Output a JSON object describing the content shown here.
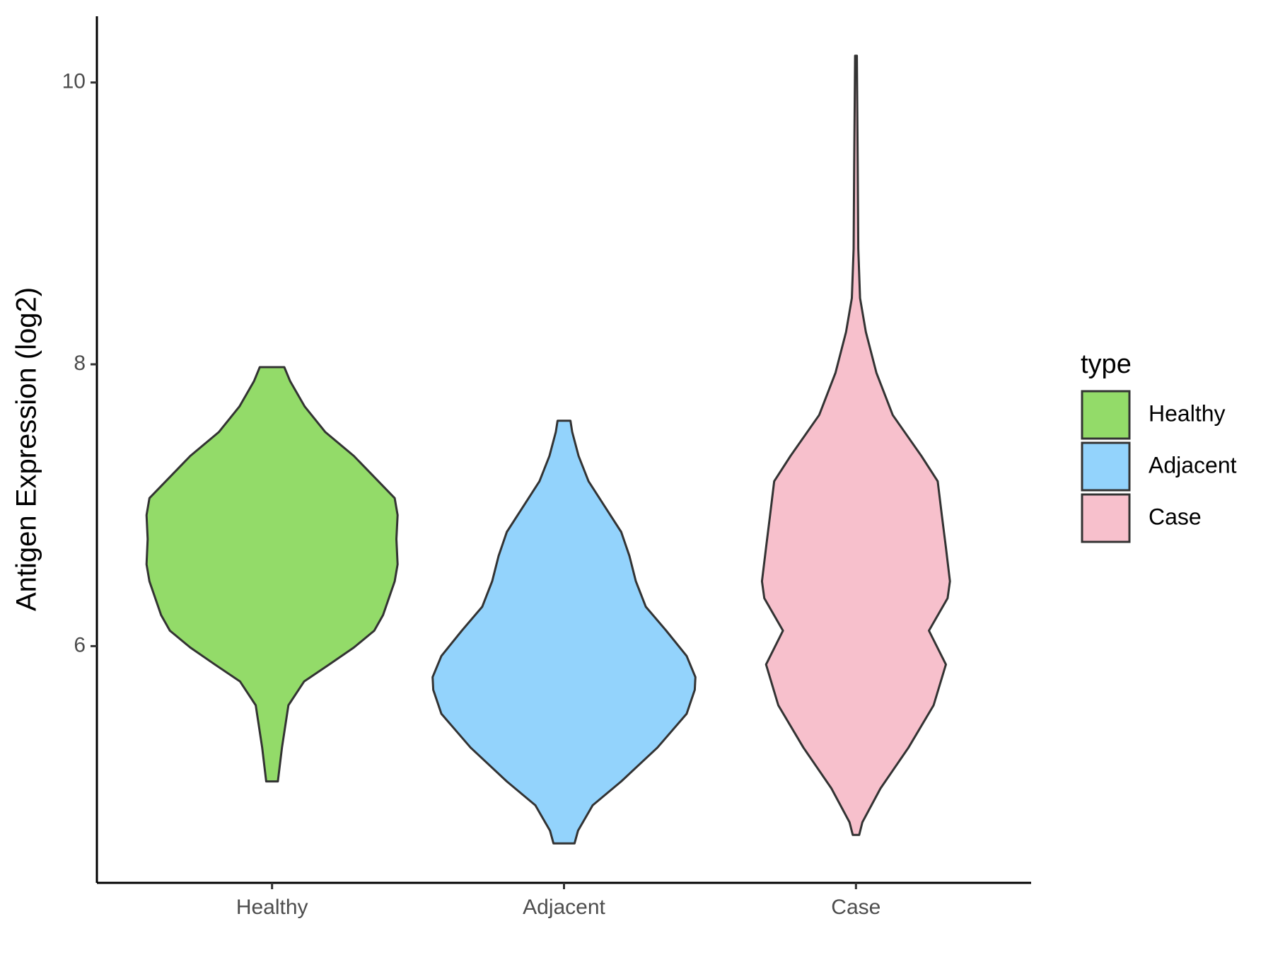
{
  "chart_data": {
    "type": "violin",
    "y_label": "Antigen Expression (log2)",
    "legend_title": "type",
    "ylim": [
      4.32,
      10.47
    ],
    "yticks": [
      6,
      8,
      10
    ],
    "categories": [
      "Healthy",
      "Adjacent",
      "Case"
    ],
    "series": [
      {
        "name": "Healthy",
        "color": "#93db69",
        "y": [
          5.04,
          5.28,
          5.58,
          5.75,
          5.87,
          5.99,
          6.11,
          6.22,
          6.46,
          6.58,
          6.76,
          6.93,
          7.05,
          7.17,
          7.35,
          7.52,
          7.7,
          7.88,
          7.98
        ],
        "width": [
          0.02,
          0.034,
          0.056,
          0.11,
          0.196,
          0.28,
          0.35,
          0.38,
          0.42,
          0.43,
          0.426,
          0.43,
          0.42,
          0.364,
          0.28,
          0.182,
          0.112,
          0.062,
          0.042
        ]
      },
      {
        "name": "Adjacent",
        "color": "#93d3fc",
        "y": [
          4.6,
          4.69,
          4.87,
          5.04,
          5.28,
          5.52,
          5.69,
          5.78,
          5.93,
          6.11,
          6.28,
          6.46,
          6.64,
          6.81,
          6.99,
          7.17,
          7.35,
          7.52,
          7.6
        ],
        "width": [
          0.036,
          0.048,
          0.098,
          0.196,
          0.32,
          0.42,
          0.448,
          0.45,
          0.42,
          0.35,
          0.28,
          0.246,
          0.224,
          0.196,
          0.14,
          0.084,
          0.05,
          0.028,
          0.022
        ]
      },
      {
        "name": "Case",
        "color": "#f7c0cc",
        "y": [
          4.66,
          4.75,
          4.99,
          5.28,
          5.58,
          5.87,
          6.11,
          6.34,
          6.46,
          6.7,
          6.93,
          7.17,
          7.35,
          7.64,
          7.94,
          8.23,
          8.47,
          8.82,
          9.41,
          10.19
        ],
        "width": [
          0.011,
          0.022,
          0.084,
          0.18,
          0.266,
          0.308,
          0.25,
          0.314,
          0.322,
          0.308,
          0.294,
          0.28,
          0.224,
          0.126,
          0.07,
          0.034,
          0.014,
          0.008,
          0.006,
          0.003
        ]
      }
    ]
  }
}
